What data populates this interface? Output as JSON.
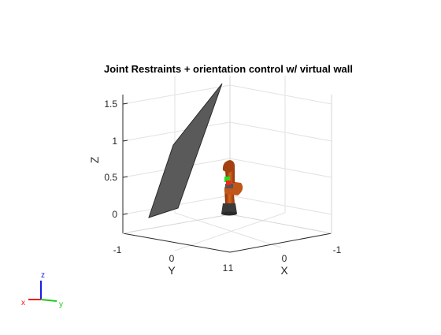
{
  "chart_data": {
    "type": "3d-scene",
    "title": "Joint Restraints + orientation control w/ virtual wall",
    "xlabel": "X",
    "ylabel": "Y",
    "zlabel": "Z",
    "z_ticks": [
      "0",
      "0.5",
      "1",
      "1.5"
    ],
    "y_ticks": [
      "-1",
      "0",
      "1"
    ],
    "x_ticks": [
      "1",
      "0",
      "-1"
    ],
    "grid": true,
    "wall_color": "#5a5a5a",
    "robot_color": "#b84a10",
    "marker_colors": [
      "#22dd22",
      "#ff2020"
    ],
    "triad": {
      "labels": [
        "z",
        "x",
        "y"
      ],
      "colors": [
        "#1a1aee",
        "#ee1a1a",
        "#1acc1a"
      ]
    }
  }
}
